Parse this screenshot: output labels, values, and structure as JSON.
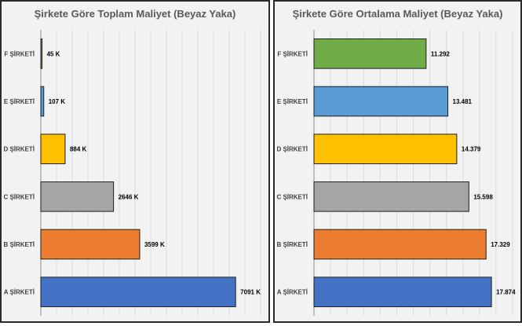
{
  "chart_data": [
    {
      "type": "bar",
      "title": "Şirkete Göre Toplam Maliyet (Beyaz Yaka)",
      "categories": [
        "F ŞİRKETİ",
        "E ŞİRKETİ",
        "D ŞİRKETİ",
        "C ŞİRKETİ",
        "B ŞİRKETİ",
        "A ŞİRKETİ"
      ],
      "values": [
        45,
        107,
        884,
        2646,
        3599,
        7091
      ],
      "value_labels": [
        "45 K",
        "107 K",
        "884 K",
        "2646 K",
        "3599 K",
        "7091 K"
      ],
      "colors": [
        "#70ad47",
        "#5b9bd5",
        "#ffc000",
        "#a5a5a5",
        "#ed7d31",
        "#4472c4"
      ],
      "xlim": [
        0,
        8000
      ],
      "orientation": "horizontal",
      "grid": true
    },
    {
      "type": "bar",
      "title": "Şirkete Göre Ortalama Maliyet (Beyaz Yaka)",
      "categories": [
        "F ŞİRKETİ",
        "E ŞİRKETİ",
        "D ŞİRKETİ",
        "C ŞİRKETİ",
        "B ŞİRKETİ",
        "A ŞİRKETİ"
      ],
      "values": [
        11292,
        13481,
        14379,
        15598,
        17329,
        17874
      ],
      "value_labels": [
        "11.292",
        "13.481",
        "14.379",
        "15.598",
        "17.329",
        "17.874"
      ],
      "colors": [
        "#70ad47",
        "#5b9bd5",
        "#ffc000",
        "#a5a5a5",
        "#ed7d31",
        "#4472c4"
      ],
      "xlim": [
        0,
        20000
      ],
      "orientation": "horizontal",
      "grid": true
    }
  ]
}
